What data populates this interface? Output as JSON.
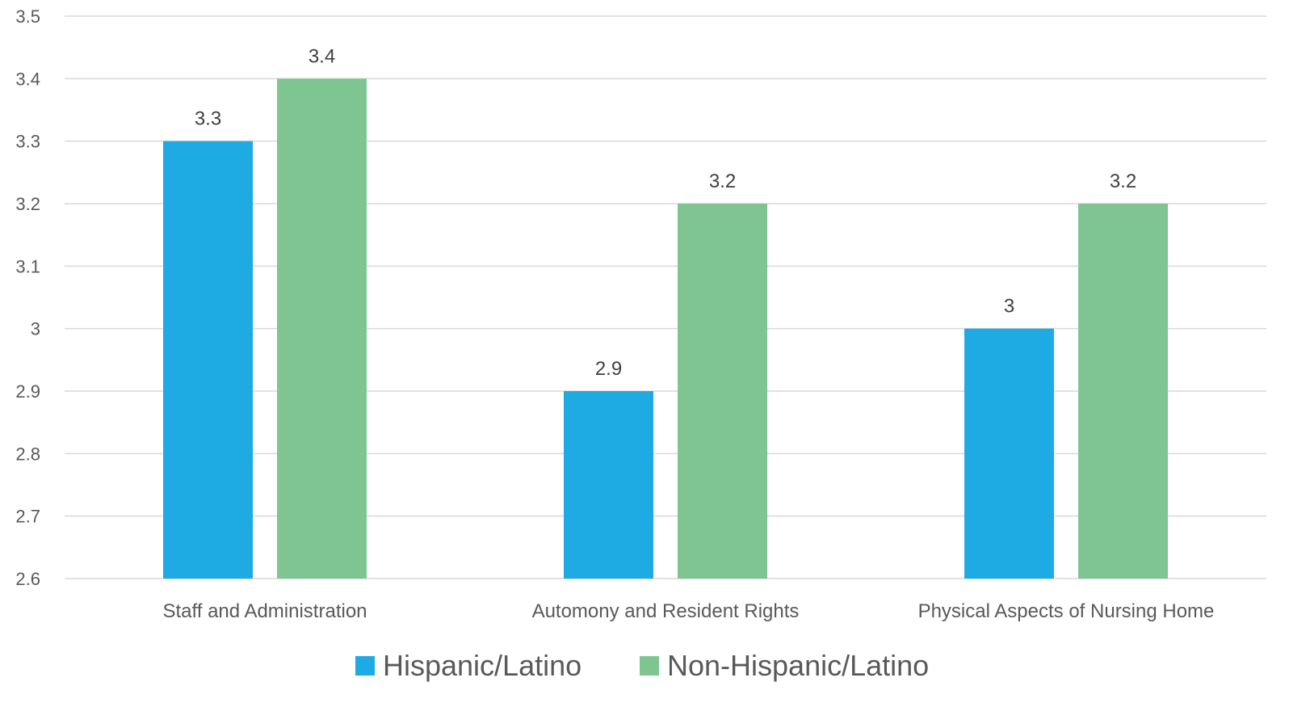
{
  "chart_data": {
    "type": "bar",
    "title": "",
    "xlabel": "",
    "ylabel": "",
    "categories": [
      "Staff and Administration",
      "Automony and Resident Rights",
      "Physical Aspects of Nursing Home"
    ],
    "series": [
      {
        "name": "Hispanic/Latino",
        "values": [
          3.3,
          2.9,
          3
        ],
        "labels": [
          "3.3",
          "2.9",
          "3"
        ],
        "color": "#1eabe3"
      },
      {
        "name": "Non-Hispanic/Latino",
        "values": [
          3.4,
          3.2,
          3.2
        ],
        "labels": [
          "3.4",
          "3.2",
          "3.2"
        ],
        "color": "#7fc592"
      }
    ],
    "ylim": [
      2.6,
      3.5
    ],
    "yticks": [
      "2.6",
      "2.7",
      "2.8",
      "2.9",
      "3",
      "3.1",
      "3.2",
      "3.3",
      "3.4",
      "3.5"
    ],
    "grid": true,
    "legend_position": "bottom"
  }
}
